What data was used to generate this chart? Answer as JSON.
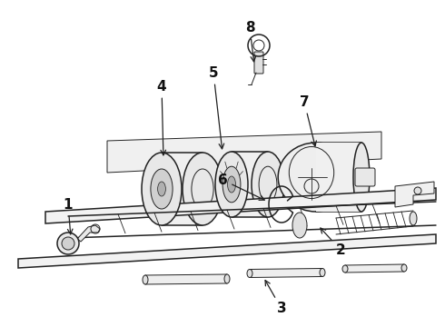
{
  "bg_color": "#ffffff",
  "line_color": "#222222",
  "lw_thin": 0.7,
  "lw_med": 1.1,
  "lw_thick": 1.5,
  "label_fontsize": 11,
  "fig_width": 4.9,
  "fig_height": 3.6,
  "dpi": 100
}
